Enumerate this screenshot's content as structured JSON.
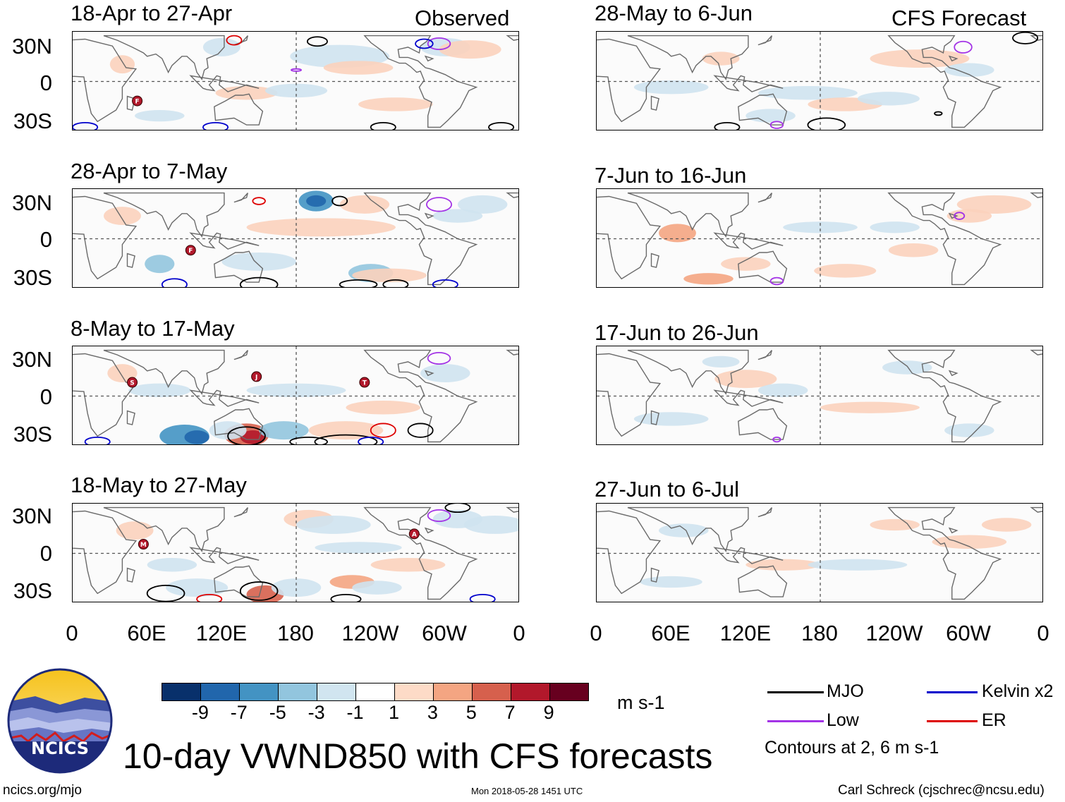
{
  "figure_title": "10-day VWND850 with CFS forecasts",
  "column_titles": {
    "observed": "Observed",
    "forecast": "CFS Forecast"
  },
  "panels": [
    {
      "label": "18-Apr to 27-Apr",
      "kind": "observed"
    },
    {
      "label": "28-Apr to 7-May",
      "kind": "observed"
    },
    {
      "label": "8-May to 17-May",
      "kind": "observed"
    },
    {
      "label": "18-May to 27-May",
      "kind": "observed"
    },
    {
      "label": "28-May to 6-Jun",
      "kind": "forecast"
    },
    {
      "label": "7-Jun to 16-Jun",
      "kind": "forecast"
    },
    {
      "label": "17-Jun to 26-Jun",
      "kind": "forecast"
    },
    {
      "label": "27-Jun to 6-Jul",
      "kind": "forecast"
    }
  ],
  "lat_labels": [
    "30N",
    "0",
    "30S"
  ],
  "lon_labels": [
    "0",
    "60E",
    "120E",
    "180",
    "120W",
    "60W",
    "0"
  ],
  "colorbar": {
    "colors": [
      "#08306b",
      "#2166ac",
      "#4393c3",
      "#92c5de",
      "#d1e5f0",
      "#ffffff",
      "#fddbc7",
      "#f4a582",
      "#d6604d",
      "#b2182b",
      "#67001f"
    ],
    "ticks": [
      "-9",
      "-7",
      "-5",
      "-3",
      "-1",
      "1",
      "3",
      "5",
      "7",
      "9"
    ],
    "units": "m s-1"
  },
  "legend": {
    "mjo": {
      "label": "MJO",
      "color": "#000000"
    },
    "low": {
      "label": "Low",
      "color": "#a333e6"
    },
    "kelvin": {
      "label": "Kelvin x2",
      "color": "#0000cc"
    },
    "er": {
      "label": "ER",
      "color": "#dd0000"
    },
    "note": "Contours at 2, 6 m s-1"
  },
  "storm_markers": [
    {
      "panel": 0,
      "letter": "F"
    },
    {
      "panel": 1,
      "letter": "F"
    },
    {
      "panel": 2,
      "letter": "S"
    },
    {
      "panel": 2,
      "letter": "J"
    },
    {
      "panel": 2,
      "letter": "T"
    },
    {
      "panel": 3,
      "letter": "M"
    },
    {
      "panel": 3,
      "letter": "A"
    }
  ],
  "logo": {
    "text": "NCICS"
  },
  "footer": {
    "url": "ncics.org/mjo",
    "timestamp": "Mon 2018-05-28 1451 UTC",
    "author": "Carl Schreck (cjschrec@ncsu.edu)"
  }
}
